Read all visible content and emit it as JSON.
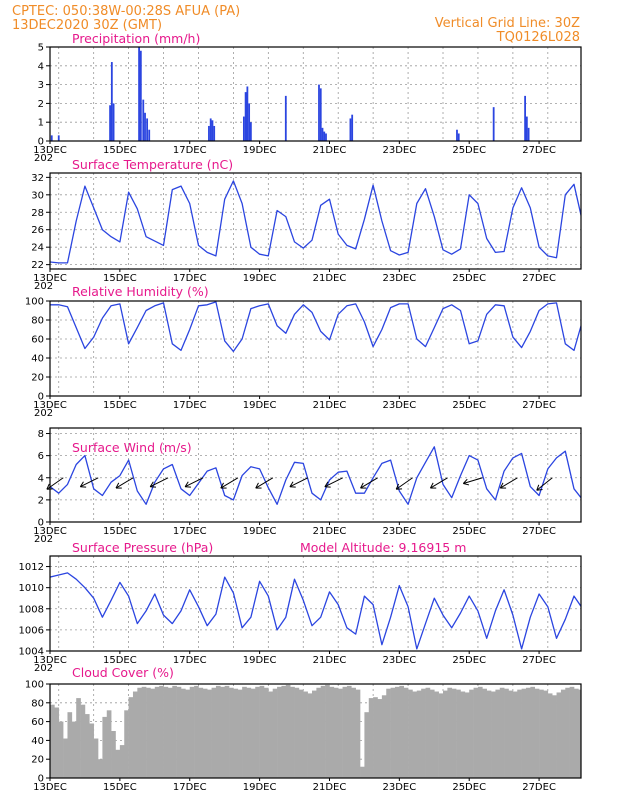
{
  "header": {
    "left_line1": "CPTEC:   050:38W-00:28S   AFUA (PA)",
    "left_line2": "13DEC2020 30Z (GMT)",
    "right_line1": "Vertical Grid Line: 30Z",
    "right_line2": "TQ0126L028"
  },
  "colors": {
    "header": "#f08c28",
    "title": "#e6198c",
    "series": "#2b45e0",
    "cloud": "#aaaaaa",
    "arrow": "#000000"
  },
  "x_axis": {
    "labels": [
      "13DEC",
      "15DEC",
      "17DEC",
      "19DEC",
      "21DEC",
      "23DEC",
      "25DEC",
      "27DEC"
    ],
    "label_days": [
      0,
      2,
      4,
      6,
      8,
      10,
      12,
      14
    ],
    "range_days": [
      0,
      15.2
    ],
    "grid_days": [
      0.25,
      1.25,
      2.25,
      3.25,
      4.25,
      5.25,
      6.25,
      7.25,
      8.25,
      9.25,
      10.25,
      11.25,
      12.25,
      13.25,
      14.25
    ],
    "year_stub": "202"
  },
  "chart_data": [
    {
      "id": "precip",
      "type": "bar",
      "title": "Precipitation (mm/h)",
      "ylim": [
        0,
        5
      ],
      "yticks": [
        "0",
        "1",
        "2",
        "3",
        "4",
        "5"
      ],
      "events": [
        [
          0.05,
          0.3
        ],
        [
          0.25,
          0.3
        ],
        [
          1.72,
          1.9
        ],
        [
          1.77,
          4.2
        ],
        [
          1.82,
          2.0
        ],
        [
          2.55,
          5.0
        ],
        [
          2.6,
          4.8
        ],
        [
          2.67,
          2.2
        ],
        [
          2.72,
          1.5
        ],
        [
          2.78,
          1.2
        ],
        [
          2.84,
          0.6
        ],
        [
          4.55,
          0.8
        ],
        [
          4.6,
          1.2
        ],
        [
          4.65,
          1.1
        ],
        [
          4.7,
          0.8
        ],
        [
          5.55,
          1.3
        ],
        [
          5.6,
          2.6
        ],
        [
          5.65,
          2.9
        ],
        [
          5.7,
          2.0
        ],
        [
          5.75,
          1.0
        ],
        [
          6.75,
          2.4
        ],
        [
          7.7,
          3.0
        ],
        [
          7.75,
          2.8
        ],
        [
          7.8,
          0.7
        ],
        [
          7.85,
          0.5
        ],
        [
          7.9,
          0.4
        ],
        [
          8.6,
          1.2
        ],
        [
          8.65,
          1.4
        ],
        [
          11.65,
          0.6
        ],
        [
          11.7,
          0.4
        ],
        [
          12.7,
          1.8
        ],
        [
          13.6,
          2.4
        ],
        [
          13.65,
          1.3
        ],
        [
          13.7,
          0.7
        ]
      ]
    },
    {
      "id": "temp",
      "type": "line",
      "title": "Surface Temperature (nC)",
      "ylim": [
        21.5,
        32.5
      ],
      "yticks": [
        "22",
        "24",
        "26",
        "28",
        "30",
        "32"
      ],
      "step": 0.25,
      "values": [
        22.3,
        22.2,
        22.2,
        27,
        31,
        28.5,
        26,
        25.2,
        24.6,
        30.3,
        28.4,
        25.2,
        24.7,
        24.2,
        30.6,
        31,
        29,
        24.2,
        23.4,
        23,
        29.5,
        31.6,
        29,
        24,
        23.2,
        23,
        28.2,
        27.5,
        24.6,
        23.9,
        24.8,
        28.8,
        29.5,
        25.5,
        24.2,
        23.8,
        27.2,
        31.1,
        27,
        23.6,
        23.1,
        23.4,
        29,
        30.7,
        27.5,
        23.7,
        23.2,
        23.8,
        30,
        29,
        25,
        23.4,
        23.5,
        28.5,
        30.8,
        28.5,
        24,
        23,
        22.8,
        30,
        31.2,
        26.8,
        23.6,
        23.2,
        29,
        30.6,
        27.5,
        25,
        24.2,
        24,
        30.2,
        31.5,
        28,
        24.2,
        23.6,
        29.5,
        30.8,
        27,
        24.6,
        24,
        25,
        28.6,
        29.2,
        25.2,
        23.8,
        23.6,
        30.8,
        31.5,
        27.1
      ]
    },
    {
      "id": "rh",
      "type": "line",
      "title": "Relative Humidity (%)",
      "ylim": [
        0,
        100
      ],
      "yticks": [
        "0",
        "20",
        "40",
        "60",
        "80",
        "100"
      ],
      "step": 0.25,
      "values": [
        96,
        96,
        94,
        72,
        50,
        62,
        82,
        95,
        97,
        55,
        72,
        90,
        95,
        98,
        55,
        48,
        70,
        95,
        96,
        99,
        58,
        47,
        60,
        92,
        95,
        97,
        74,
        66,
        86,
        96,
        88,
        68,
        59,
        86,
        95,
        97,
        78,
        52,
        70,
        93,
        97,
        97,
        60,
        52,
        72,
        92,
        96,
        90,
        55,
        58,
        86,
        96,
        95,
        62,
        51,
        68,
        90,
        97,
        98,
        55,
        48,
        80,
        95,
        96,
        64,
        50,
        60,
        80,
        92,
        94,
        54,
        47,
        66,
        90,
        95,
        62,
        52,
        65,
        86,
        92,
        88,
        70,
        60,
        80,
        94,
        97,
        50,
        45,
        62
      ]
    },
    {
      "id": "wind",
      "type": "line",
      "title": "Surface Wind (m/s)",
      "ylim": [
        0,
        8.5
      ],
      "yticks": [
        "0",
        "2",
        "4",
        "6",
        "8"
      ],
      "step": 0.25,
      "values": [
        3.2,
        2.6,
        3.4,
        5.2,
        6.0,
        3.0,
        2.4,
        3.6,
        4.2,
        5.6,
        2.8,
        1.6,
        3.6,
        4.8,
        5.2,
        3.0,
        2.4,
        3.5,
        4.6,
        4.9,
        2.4,
        2.0,
        4.2,
        5.0,
        4.8,
        3.1,
        1.6,
        3.8,
        5.4,
        5.3,
        2.6,
        2.0,
        3.8,
        4.5,
        4.6,
        2.6,
        2.6,
        4.0,
        5.3,
        5.6,
        2.8,
        1.6,
        4.0,
        5.4,
        6.8,
        3.4,
        2.2,
        4.2,
        6.0,
        5.6,
        3.0,
        2.0,
        4.6,
        5.8,
        6.2,
        3.2,
        2.4,
        4.8,
        5.8,
        6.4,
        3.0,
        2.0,
        3.8,
        5.4,
        6.6,
        3.6,
        2.4,
        4.6,
        6.2,
        7.6,
        4.0,
        2.4,
        4.4,
        5.8,
        6.2,
        3.4,
        1.6,
        3.6,
        5.2,
        5.6,
        2.8,
        1.2,
        3.6,
        5.4,
        6.0,
        3.0,
        1.6,
        3.6,
        5.6
      ],
      "arrows": [
        [
          0.38,
          -1,
          -0.7
        ],
        [
          1.38,
          -1,
          -0.5
        ],
        [
          2.38,
          -1,
          -0.6
        ],
        [
          3.38,
          -1,
          -0.5
        ],
        [
          4.38,
          -1,
          -0.5
        ],
        [
          5.38,
          -1,
          -0.6
        ],
        [
          6.38,
          -1,
          -0.6
        ],
        [
          7.38,
          -1,
          -0.5
        ],
        [
          8.38,
          -1,
          -0.5
        ],
        [
          9.38,
          -1,
          -0.6
        ],
        [
          10.38,
          -1,
          -0.7
        ],
        [
          11.38,
          -1,
          -0.6
        ],
        [
          12.38,
          -1,
          -0.3
        ],
        [
          13.38,
          -1,
          -0.6
        ],
        [
          14.38,
          -1,
          -0.8
        ]
      ]
    },
    {
      "id": "pres",
      "type": "line",
      "title": "Surface Pressure (hPa)",
      "subtitle": "Model Altitude: 9.16915 m",
      "ylim": [
        1004,
        1013
      ],
      "yticks": [
        "1004",
        "1006",
        "1008",
        "1010",
        "1012"
      ],
      "step": 0.25,
      "values": [
        1011,
        1011.2,
        1011.4,
        1010.8,
        1010,
        1009,
        1007.2,
        1008.8,
        1010.5,
        1009.2,
        1006.6,
        1007.8,
        1009.4,
        1007.4,
        1006.6,
        1007.8,
        1009.8,
        1008.2,
        1006.4,
        1007.5,
        1011,
        1009.5,
        1006.2,
        1007.2,
        1010.6,
        1009.2,
        1006,
        1007.2,
        1010.8,
        1008.8,
        1006.4,
        1007.2,
        1009.6,
        1008.4,
        1006.2,
        1005.6,
        1009.2,
        1008.4,
        1004.6,
        1007.2,
        1010.2,
        1008.2,
        1004.2,
        1006.6,
        1009,
        1007.4,
        1006.2,
        1007.6,
        1009.2,
        1007.8,
        1005.2,
        1007.8,
        1009.8,
        1007.4,
        1004.2,
        1007.2,
        1009.4,
        1008.2,
        1005.2,
        1007,
        1009.2,
        1008,
        1005.2,
        1006.8,
        1008.4,
        1006.8,
        1006.4,
        1008,
        1009.6,
        1008.2,
        1005.2,
        1006.8,
        1009.2,
        1007.4,
        1005.4,
        1007,
        1009,
        1007.2,
        1005.4,
        1007.8,
        1009.4,
        1007.6,
        1006.2,
        1007.8,
        1009.6,
        1008.2,
        1005.6,
        1004.2,
        1006
      ]
    },
    {
      "id": "cloud",
      "type": "bar",
      "title": "Cloud Cover (%)",
      "ylim": [
        0,
        100
      ],
      "yticks": [
        "0",
        "20",
        "40",
        "60",
        "80",
        "100"
      ],
      "step": 0.125,
      "values": [
        78,
        75,
        60,
        42,
        70,
        60,
        85,
        78,
        68,
        58,
        42,
        20,
        65,
        72,
        50,
        30,
        35,
        72,
        86,
        92,
        96,
        97,
        96,
        95,
        97,
        98,
        97,
        96,
        98,
        97,
        95,
        94,
        97,
        98,
        96,
        95,
        94,
        96,
        98,
        97,
        98,
        96,
        95,
        94,
        97,
        96,
        95,
        97,
        98,
        96,
        92,
        95,
        97,
        98,
        99,
        97,
        96,
        94,
        92,
        90,
        93,
        96,
        98,
        99,
        97,
        96,
        95,
        97,
        98,
        96,
        94,
        12,
        70,
        85,
        86,
        84,
        88,
        95,
        96,
        97,
        98,
        96,
        94,
        92,
        93,
        95,
        96,
        94,
        92,
        90,
        93,
        96,
        95,
        94,
        92,
        91,
        94,
        96,
        97,
        95,
        93,
        92,
        94,
        96,
        95,
        93,
        92,
        94,
        95,
        96,
        97,
        95,
        94,
        93,
        90,
        88,
        91,
        94,
        96,
        97,
        95,
        94,
        92,
        95,
        96,
        97,
        95,
        93,
        90,
        88,
        86,
        82,
        78,
        60,
        40,
        18,
        45,
        70,
        88,
        92,
        94,
        95,
        96,
        97,
        95,
        93,
        92,
        94,
        96,
        97,
        95,
        94,
        92,
        90,
        92,
        94,
        96,
        95,
        93,
        92,
        94,
        96,
        95,
        94,
        92,
        93,
        95,
        96,
        97,
        95,
        94,
        93,
        95,
        96,
        97,
        95,
        94,
        93,
        92,
        94,
        95,
        96,
        94,
        93,
        92,
        91,
        93,
        95,
        97,
        96,
        94,
        93,
        92,
        90,
        88,
        92,
        95,
        96,
        94,
        93,
        92,
        94,
        95,
        80,
        60,
        85,
        90,
        92,
        94,
        95,
        93,
        92,
        90,
        88,
        86,
        90,
        94
      ]
    }
  ]
}
